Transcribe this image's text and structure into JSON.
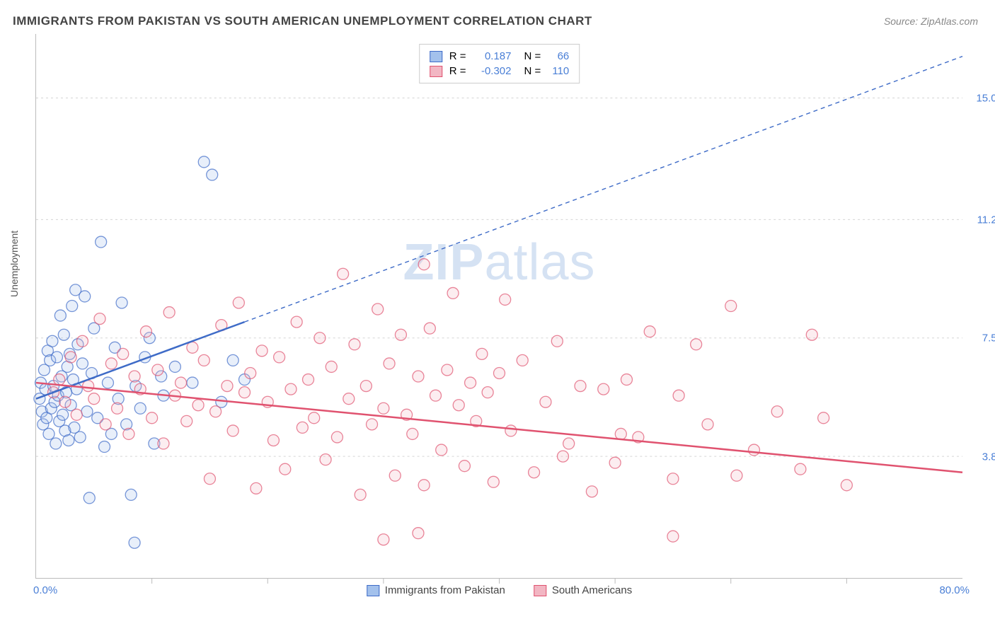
{
  "title": "IMMIGRANTS FROM PAKISTAN VS SOUTH AMERICAN UNEMPLOYMENT CORRELATION CHART",
  "source": "Source: ZipAtlas.com",
  "watermark_zip": "ZIP",
  "watermark_atlas": "atlas",
  "ylabel": "Unemployment",
  "chart": {
    "type": "scatter",
    "background_color": "#ffffff",
    "grid_color": "#d5d5d5",
    "axis_color": "#bbbbbb",
    "tick_label_color": "#4a7fd6",
    "tick_fontsize": 15,
    "title_fontsize": 17,
    "title_color": "#444444",
    "xlim": [
      0,
      80
    ],
    "ylim": [
      0,
      17
    ],
    "xtick_labels": {
      "min": "0.0%",
      "max": "80.0%"
    },
    "xtick_marks": [
      10,
      20,
      30,
      40,
      50,
      60,
      70
    ],
    "ytick_values": [
      3.8,
      7.5,
      11.2,
      15.0
    ],
    "ytick_labels": [
      "3.8%",
      "7.5%",
      "11.2%",
      "15.0%"
    ],
    "marker_radius": 8,
    "marker_fill_opacity": 0.25,
    "marker_stroke_width": 1.3,
    "series": [
      {
        "name": "Immigrants from Pakistan",
        "color_stroke": "#3e6bc7",
        "color_fill": "#a3c1ec",
        "legend_label": "Immigrants from Pakistan",
        "R_label": "R =",
        "R_value": "0.187",
        "N_label": "N =",
        "N_value": "66",
        "trend_solid": {
          "x1": 0,
          "y1": 5.6,
          "x2": 18,
          "y2": 8.0,
          "width": 2.5
        },
        "trend_dash": {
          "x1": 18,
          "y1": 8.0,
          "x2": 80,
          "y2": 16.3,
          "width": 1.4,
          "dash": "6,5"
        },
        "points": [
          [
            0.3,
            5.6
          ],
          [
            0.4,
            6.1
          ],
          [
            0.5,
            5.2
          ],
          [
            0.6,
            4.8
          ],
          [
            0.7,
            6.5
          ],
          [
            0.8,
            5.9
          ],
          [
            0.9,
            5.0
          ],
          [
            1.0,
            7.1
          ],
          [
            1.1,
            4.5
          ],
          [
            1.2,
            6.8
          ],
          [
            1.3,
            5.3
          ],
          [
            1.4,
            7.4
          ],
          [
            1.5,
            6.0
          ],
          [
            1.6,
            5.5
          ],
          [
            1.7,
            4.2
          ],
          [
            1.8,
            6.9
          ],
          [
            1.9,
            5.7
          ],
          [
            2.0,
            4.9
          ],
          [
            2.1,
            8.2
          ],
          [
            2.2,
            6.3
          ],
          [
            2.3,
            5.1
          ],
          [
            2.4,
            7.6
          ],
          [
            2.5,
            4.6
          ],
          [
            2.6,
            5.8
          ],
          [
            2.7,
            6.6
          ],
          [
            2.8,
            4.3
          ],
          [
            2.9,
            7.0
          ],
          [
            3.0,
            5.4
          ],
          [
            3.1,
            8.5
          ],
          [
            3.2,
            6.2
          ],
          [
            3.3,
            4.7
          ],
          [
            3.4,
            9.0
          ],
          [
            3.5,
            5.9
          ],
          [
            3.6,
            7.3
          ],
          [
            3.8,
            4.4
          ],
          [
            4.0,
            6.7
          ],
          [
            4.2,
            8.8
          ],
          [
            4.4,
            5.2
          ],
          [
            4.6,
            2.5
          ],
          [
            4.8,
            6.4
          ],
          [
            5.0,
            7.8
          ],
          [
            5.3,
            5.0
          ],
          [
            5.6,
            10.5
          ],
          [
            5.9,
            4.1
          ],
          [
            6.2,
            6.1
          ],
          [
            6.5,
            4.5
          ],
          [
            6.8,
            7.2
          ],
          [
            7.1,
            5.6
          ],
          [
            7.4,
            8.6
          ],
          [
            7.8,
            4.8
          ],
          [
            8.2,
            2.6
          ],
          [
            8.6,
            6.0
          ],
          [
            9.0,
            5.3
          ],
          [
            9.4,
            6.9
          ],
          [
            9.8,
            7.5
          ],
          [
            10.2,
            4.2
          ],
          [
            8.5,
            1.1
          ],
          [
            10.8,
            6.3
          ],
          [
            11.0,
            5.7
          ],
          [
            12.0,
            6.6
          ],
          [
            13.5,
            6.1
          ],
          [
            14.5,
            13.0
          ],
          [
            15.2,
            12.6
          ],
          [
            16.0,
            5.5
          ],
          [
            17.0,
            6.8
          ],
          [
            18.0,
            6.2
          ]
        ]
      },
      {
        "name": "South Americans",
        "color_stroke": "#e0526f",
        "color_fill": "#f2b6c3",
        "legend_label": "South Americans",
        "R_label": "R =",
        "R_value": "-0.302",
        "N_label": "N =",
        "N_value": "110",
        "trend_solid": {
          "x1": 0,
          "y1": 6.1,
          "x2": 80,
          "y2": 3.3,
          "width": 2.5
        },
        "points": [
          [
            1.5,
            5.8
          ],
          [
            2.0,
            6.2
          ],
          [
            2.5,
            5.5
          ],
          [
            3.0,
            6.9
          ],
          [
            3.5,
            5.1
          ],
          [
            4.0,
            7.4
          ],
          [
            4.5,
            6.0
          ],
          [
            5.0,
            5.6
          ],
          [
            5.5,
            8.1
          ],
          [
            6.0,
            4.8
          ],
          [
            6.5,
            6.7
          ],
          [
            7.0,
            5.3
          ],
          [
            7.5,
            7.0
          ],
          [
            8.0,
            4.5
          ],
          [
            8.5,
            6.3
          ],
          [
            9.0,
            5.9
          ],
          [
            9.5,
            7.7
          ],
          [
            10.0,
            5.0
          ],
          [
            10.5,
            6.5
          ],
          [
            11.0,
            4.2
          ],
          [
            11.5,
            8.3
          ],
          [
            12.0,
            5.7
          ],
          [
            12.5,
            6.1
          ],
          [
            13.0,
            4.9
          ],
          [
            13.5,
            7.2
          ],
          [
            14.0,
            5.4
          ],
          [
            14.5,
            6.8
          ],
          [
            15.0,
            3.1
          ],
          [
            15.5,
            5.2
          ],
          [
            16.0,
            7.9
          ],
          [
            16.5,
            6.0
          ],
          [
            17.0,
            4.6
          ],
          [
            17.5,
            8.6
          ],
          [
            18.0,
            5.8
          ],
          [
            18.5,
            6.4
          ],
          [
            19.0,
            2.8
          ],
          [
            19.5,
            7.1
          ],
          [
            20.0,
            5.5
          ],
          [
            20.5,
            4.3
          ],
          [
            21.0,
            6.9
          ],
          [
            21.5,
            3.4
          ],
          [
            22.0,
            5.9
          ],
          [
            22.5,
            8.0
          ],
          [
            23.0,
            4.7
          ],
          [
            23.5,
            6.2
          ],
          [
            24.0,
            5.0
          ],
          [
            24.5,
            7.5
          ],
          [
            25.0,
            3.7
          ],
          [
            25.5,
            6.6
          ],
          [
            26.0,
            4.4
          ],
          [
            26.5,
            9.5
          ],
          [
            27.0,
            5.6
          ],
          [
            27.5,
            7.3
          ],
          [
            28.0,
            2.6
          ],
          [
            28.5,
            6.0
          ],
          [
            29.0,
            4.8
          ],
          [
            29.5,
            8.4
          ],
          [
            30.0,
            5.3
          ],
          [
            30.5,
            6.7
          ],
          [
            31.0,
            3.2
          ],
          [
            31.5,
            7.6
          ],
          [
            32.0,
            5.1
          ],
          [
            32.5,
            4.5
          ],
          [
            33.0,
            6.3
          ],
          [
            33.5,
            2.9
          ],
          [
            34.0,
            7.8
          ],
          [
            34.5,
            5.7
          ],
          [
            35.0,
            4.0
          ],
          [
            35.5,
            6.5
          ],
          [
            36.0,
            8.9
          ],
          [
            36.5,
            5.4
          ],
          [
            37.0,
            3.5
          ],
          [
            37.5,
            6.1
          ],
          [
            38.0,
            4.9
          ],
          [
            38.5,
            7.0
          ],
          [
            39.0,
            5.8
          ],
          [
            39.5,
            3.0
          ],
          [
            40.0,
            6.4
          ],
          [
            30.0,
            1.2
          ],
          [
            33.0,
            1.4
          ],
          [
            41.0,
            4.6
          ],
          [
            42.0,
            6.8
          ],
          [
            43.0,
            3.3
          ],
          [
            44.0,
            5.5
          ],
          [
            45.0,
            7.4
          ],
          [
            46.0,
            4.2
          ],
          [
            47.0,
            6.0
          ],
          [
            48.0,
            2.7
          ],
          [
            49.0,
            5.9
          ],
          [
            50.0,
            3.6
          ],
          [
            51.0,
            6.2
          ],
          [
            52.0,
            4.4
          ],
          [
            53.0,
            7.7
          ],
          [
            55.0,
            3.1
          ],
          [
            57.0,
            7.3
          ],
          [
            58.0,
            4.8
          ],
          [
            55.0,
            1.3
          ],
          [
            60.0,
            8.5
          ],
          [
            62.0,
            4.0
          ],
          [
            64.0,
            5.2
          ],
          [
            66.0,
            3.4
          ],
          [
            68.0,
            5.0
          ],
          [
            70.0,
            2.9
          ],
          [
            67.0,
            7.6
          ],
          [
            33.5,
            9.8
          ],
          [
            40.5,
            8.7
          ],
          [
            45.5,
            3.8
          ],
          [
            50.5,
            4.5
          ],
          [
            55.5,
            5.7
          ],
          [
            60.5,
            3.2
          ]
        ]
      }
    ],
    "legend_bottom": [
      {
        "label": "Immigrants from Pakistan",
        "fill": "#a3c1ec",
        "stroke": "#3e6bc7"
      },
      {
        "label": "South Americans",
        "fill": "#f2b6c3",
        "stroke": "#e0526f"
      }
    ]
  }
}
